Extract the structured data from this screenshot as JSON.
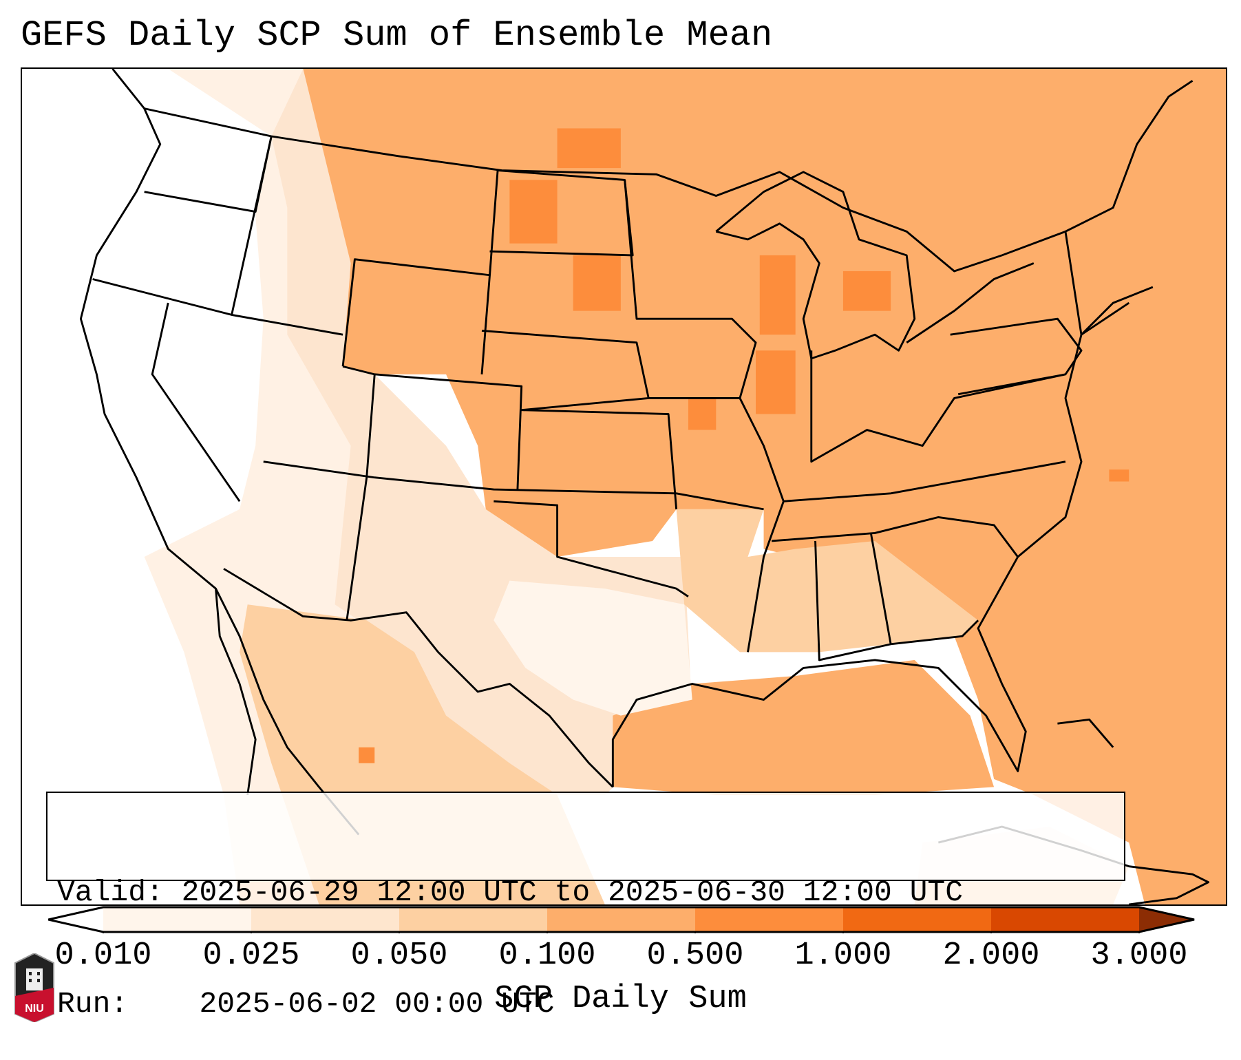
{
  "title": "GEFS Daily SCP Sum of Ensemble Mean",
  "annotation": {
    "valid_label": "Valid:",
    "valid_value": "2025-06-29 12:00 UTC to 2025-06-30 12:00 UTC",
    "run_label": "Run:",
    "run_value": "2025-06-02 00:00 UTC"
  },
  "colorbar": {
    "label": "SCP Daily Sum",
    "ticks": [
      "0.010",
      "0.025",
      "0.050",
      "0.100",
      "0.500",
      "1.000",
      "2.000",
      "3.000"
    ],
    "colors": [
      "#fff5eb",
      "#fee6ce",
      "#fdd0a2",
      "#fdae6b",
      "#fd8d3c",
      "#f16913",
      "#d94801"
    ],
    "under_color": "#ffffff",
    "over_color": "#8c2d04"
  },
  "logo": {
    "text": "NIU"
  }
}
